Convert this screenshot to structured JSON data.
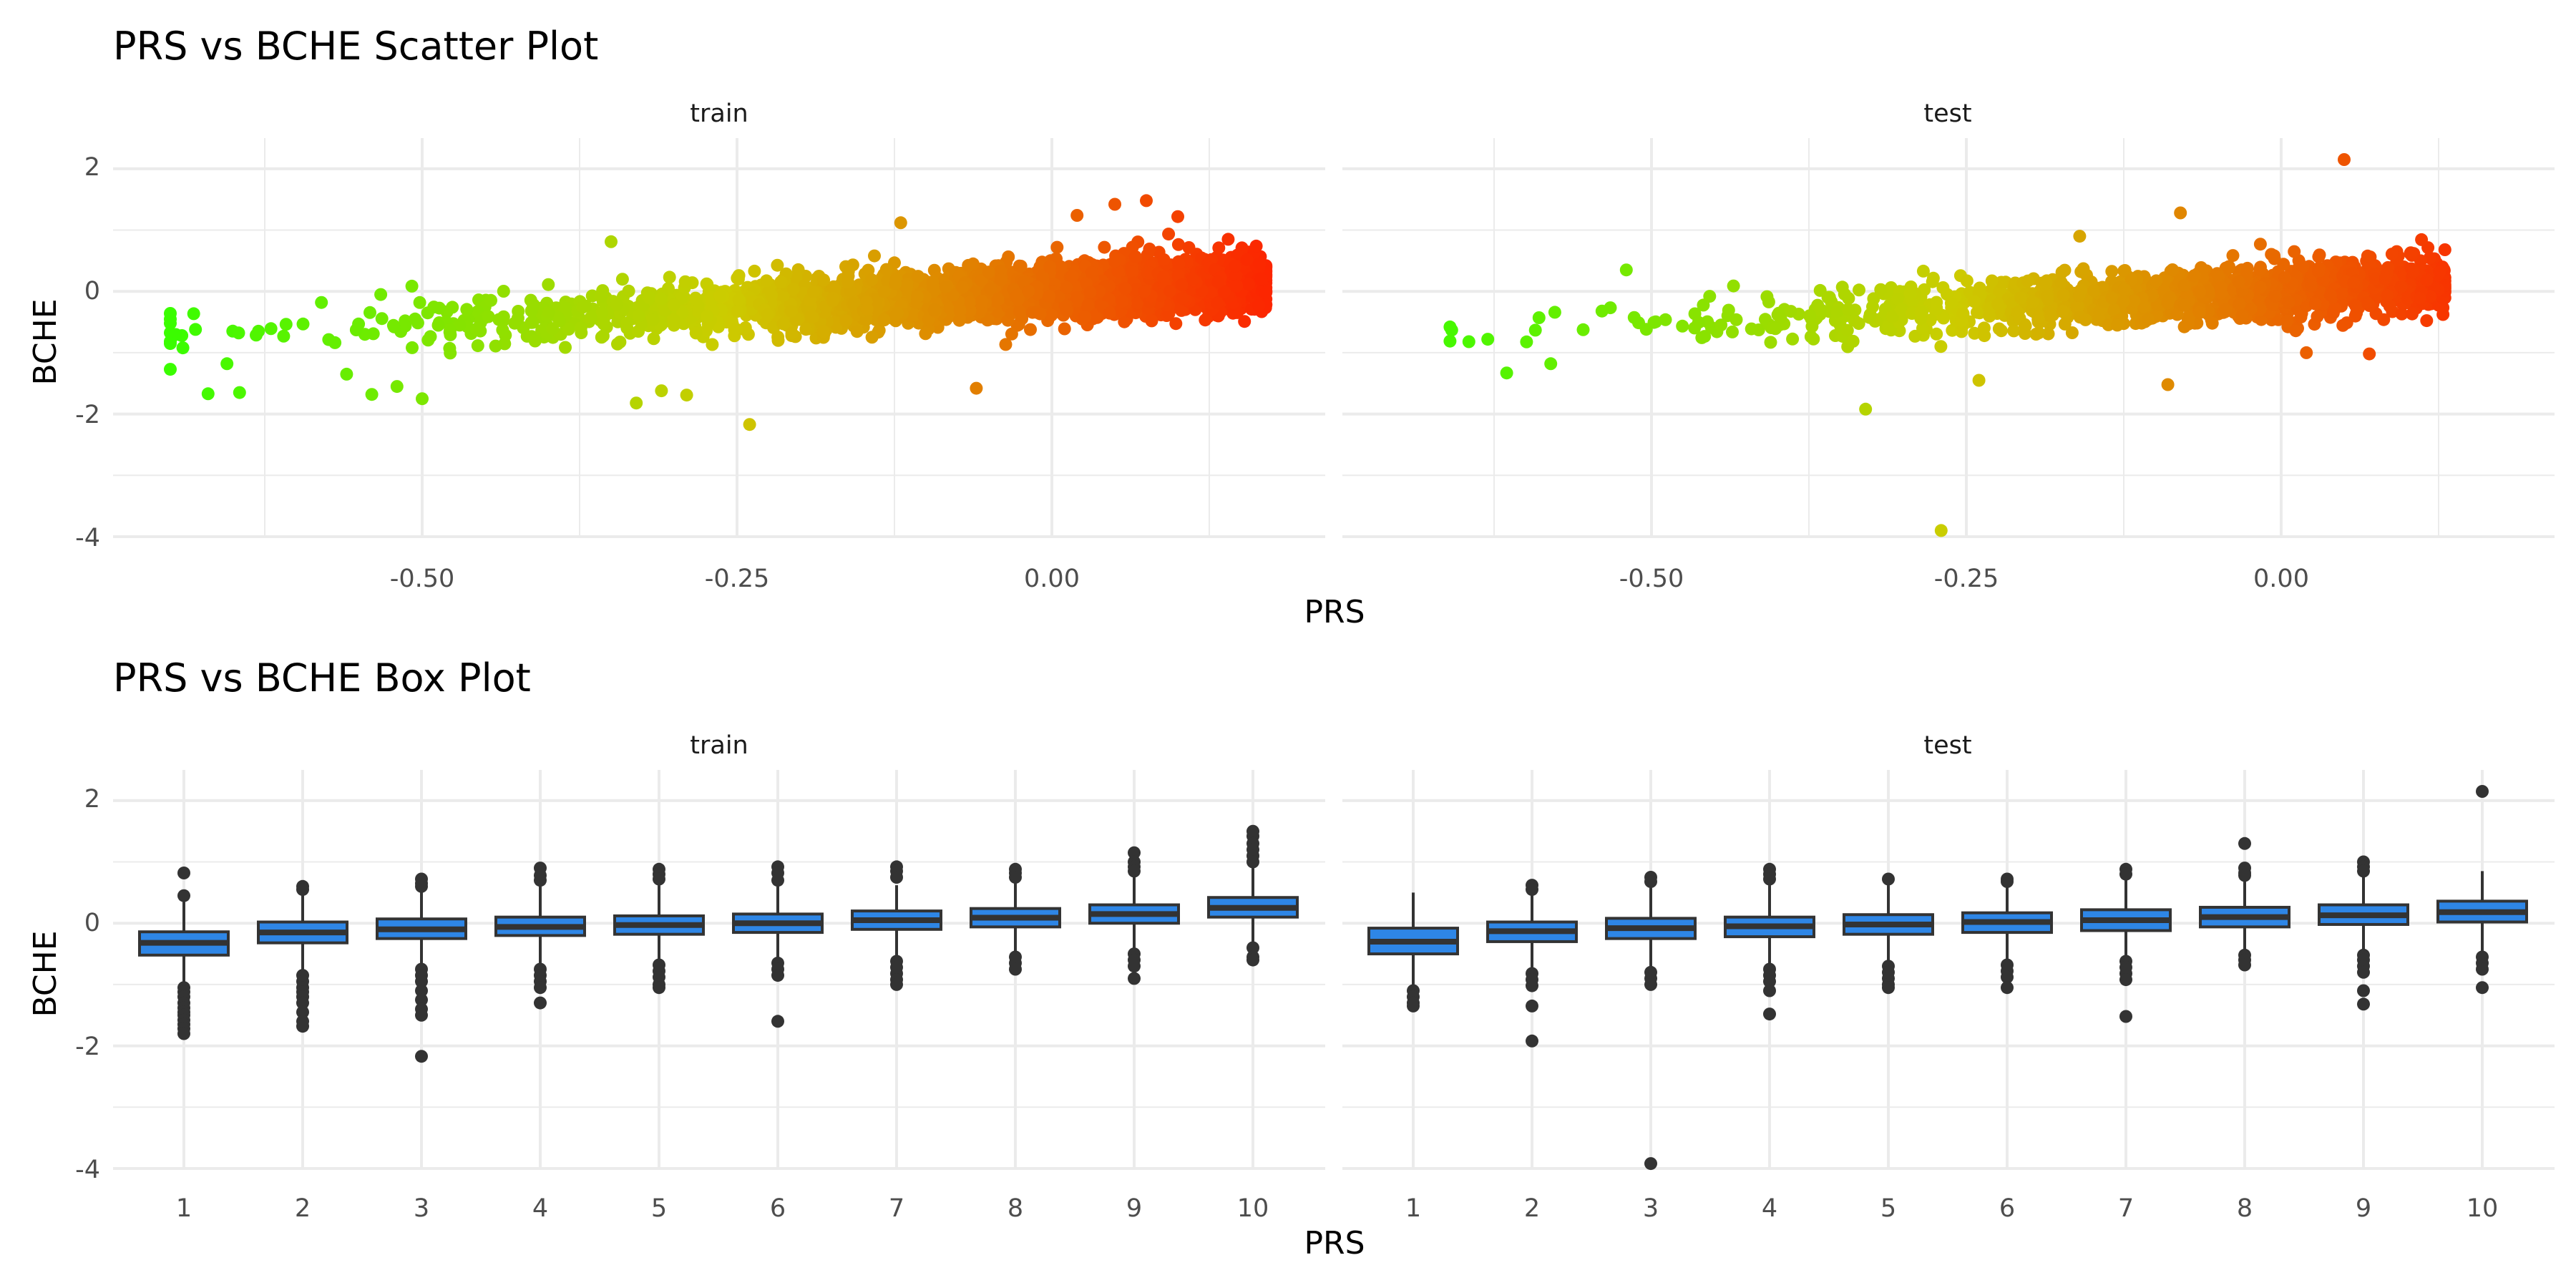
{
  "chart_data": [
    {
      "type": "scatter",
      "title": "PRS vs BCHE Scatter Plot",
      "xlabel": "PRS",
      "ylabel": "BCHE",
      "facets": [
        "train",
        "test"
      ],
      "xlim": [
        -0.72,
        0.2
      ],
      "ylim": [
        -4.0,
        2.5
      ],
      "x_ticks": [
        -0.5,
        -0.25,
        0.0
      ],
      "x_tick_labels": [
        "-0.50",
        "-0.25",
        "0.00"
      ],
      "y_ticks": [
        2,
        0,
        -2,
        -4
      ],
      "y_tick_labels": [
        "2",
        "0",
        "-2",
        "-4"
      ],
      "color_scale": {
        "low": "#33ff00",
        "mid": "#cccc00",
        "high": "#ff1a00",
        "note": "points colored by PRS"
      },
      "grid": true,
      "panels": [
        {
          "facet": "train",
          "trend": {
            "slope": 1.05,
            "intercept": 0.0,
            "spread": 0.22
          },
          "x_range": [
            -0.7,
            0.17
          ],
          "points": [
            [
              -0.7,
              -0.85
            ],
            [
              -0.69,
              -0.92
            ],
            [
              -0.68,
              -0.62
            ],
            [
              -0.67,
              -1.67
            ],
            [
              -0.655,
              -1.18
            ],
            [
              -0.645,
              -1.65
            ],
            [
              -0.63,
              -0.65
            ],
            [
              -0.61,
              -0.73
            ],
            [
              -0.58,
              -0.18
            ],
            [
              -0.56,
              -1.35
            ],
            [
              -0.52,
              -1.55
            ],
            [
              -0.5,
              -1.75
            ],
            [
              -0.54,
              -1.68
            ],
            [
              -0.35,
              0.81
            ],
            [
              -0.31,
              -1.62
            ],
            [
              -0.33,
              -1.82
            ],
            [
              -0.29,
              -1.69
            ],
            [
              -0.24,
              -2.17
            ],
            [
              -0.12,
              1.12
            ],
            [
              -0.06,
              -1.58
            ],
            [
              0.05,
              1.42
            ],
            [
              0.075,
              1.48
            ],
            [
              0.1,
              1.22
            ],
            [
              0.155,
              0.52
            ],
            [
              0.165,
              0.45
            ],
            [
              0.17,
              -0.02
            ],
            [
              0.14,
              0.85
            ],
            [
              0.02,
              1.24
            ]
          ]
        },
        {
          "facet": "test",
          "trend": {
            "slope": 1.05,
            "intercept": 0.0,
            "spread": 0.22
          },
          "x_range": [
            -0.66,
            0.13
          ],
          "points": [
            [
              -0.66,
              -0.58
            ],
            [
              -0.645,
              -0.82
            ],
            [
              -0.63,
              -0.78
            ],
            [
              -0.615,
              -1.33
            ],
            [
              -0.58,
              -1.18
            ],
            [
              -0.52,
              0.35
            ],
            [
              -0.33,
              -1.92
            ],
            [
              -0.27,
              -3.9
            ],
            [
              -0.24,
              -1.45
            ],
            [
              -0.09,
              -1.52
            ],
            [
              0.05,
              2.15
            ],
            [
              -0.08,
              1.28
            ],
            [
              0.07,
              -1.02
            ],
            [
              0.13,
              0.68
            ],
            [
              0.105,
              0.32
            ],
            [
              0.11,
              -0.11
            ],
            [
              -0.16,
              0.9
            ],
            [
              0.02,
              -1.0
            ]
          ]
        }
      ]
    },
    {
      "type": "box",
      "title": "PRS vs BCHE Box Plot",
      "xlabel": "PRS",
      "ylabel": "BCHE",
      "facets": [
        "train",
        "test"
      ],
      "categories": [
        "1",
        "2",
        "3",
        "4",
        "5",
        "6",
        "7",
        "8",
        "9",
        "10"
      ],
      "ylim": [
        -4.0,
        2.5
      ],
      "y_ticks": [
        2,
        0,
        -2,
        -4
      ],
      "y_tick_labels": [
        "2",
        "0",
        "-2",
        "-4"
      ],
      "box_fill": "#2e86e6",
      "box_line": "#333333",
      "grid": true,
      "panels": [
        {
          "facet": "train",
          "boxes": [
            {
              "q1": -0.52,
              "median": -0.32,
              "q3": -0.14,
              "lower": -1.0,
              "upper": 0.38,
              "outliers": [
                0.82,
                0.45,
                -1.05,
                -1.12,
                -1.2,
                -1.3,
                -1.38,
                -1.45,
                -1.5,
                -1.58,
                -1.65,
                -1.72,
                -1.8
              ]
            },
            {
              "q1": -0.32,
              "median": -0.15,
              "q3": 0.02,
              "lower": -0.8,
              "upper": 0.5,
              "outliers": [
                0.6,
                0.55,
                -0.85,
                -0.95,
                -1.05,
                -1.12,
                -1.2,
                -1.3,
                -1.45,
                -1.6,
                -1.68
              ]
            },
            {
              "q1": -0.25,
              "median": -0.1,
              "q3": 0.07,
              "lower": -0.7,
              "upper": 0.55,
              "outliers": [
                0.72,
                0.65,
                0.6,
                -0.75,
                -0.85,
                -0.95,
                -1.1,
                -1.25,
                -1.4,
                -1.5,
                -2.17
              ]
            },
            {
              "q1": -0.2,
              "median": -0.06,
              "q3": 0.1,
              "lower": -0.68,
              "upper": 0.62,
              "outliers": [
                0.9,
                0.78,
                0.7,
                -0.75,
                -0.85,
                -0.95,
                -1.05,
                -1.3
              ]
            },
            {
              "q1": -0.18,
              "median": -0.03,
              "q3": 0.12,
              "lower": -0.62,
              "upper": 0.62,
              "outliers": [
                0.88,
                0.8,
                0.72,
                -0.68,
                -0.78,
                -0.88,
                -1.0,
                -1.05
              ]
            },
            {
              "q1": -0.15,
              "median": 0.0,
              "q3": 0.15,
              "lower": -0.6,
              "upper": 0.6,
              "outliers": [
                0.92,
                0.82,
                0.7,
                -0.65,
                -0.75,
                -0.85,
                -1.6
              ]
            },
            {
              "q1": -0.1,
              "median": 0.05,
              "q3": 0.2,
              "lower": -0.55,
              "upper": 0.62,
              "outliers": [
                0.92,
                0.85,
                0.75,
                -0.62,
                -0.72,
                -0.82,
                -0.92,
                -1.0
              ]
            },
            {
              "q1": -0.06,
              "median": 0.09,
              "q3": 0.24,
              "lower": -0.5,
              "upper": 0.68,
              "outliers": [
                0.88,
                0.82,
                0.75,
                -0.55,
                -0.65,
                -0.75
              ]
            },
            {
              "q1": 0.0,
              "median": 0.15,
              "q3": 0.3,
              "lower": -0.45,
              "upper": 0.78,
              "outliers": [
                1.15,
                1.0,
                0.92,
                0.85,
                -0.5,
                -0.6,
                -0.7,
                -0.9
              ]
            },
            {
              "q1": 0.1,
              "median": 0.25,
              "q3": 0.42,
              "lower": -0.35,
              "upper": 0.9,
              "outliers": [
                1.5,
                1.42,
                1.3,
                1.2,
                1.1,
                1.0,
                -0.4,
                -0.55,
                -0.6
              ]
            }
          ]
        },
        {
          "facet": "test",
          "boxes": [
            {
              "q1": -0.5,
              "median": -0.3,
              "q3": -0.08,
              "lower": -1.05,
              "upper": 0.5,
              "outliers": [
                -1.1,
                -1.2,
                -1.3,
                -1.35
              ]
            },
            {
              "q1": -0.3,
              "median": -0.13,
              "q3": 0.02,
              "lower": -0.75,
              "upper": 0.5,
              "outliers": [
                0.62,
                0.55,
                -0.82,
                -0.92,
                -1.02,
                -1.35,
                -1.92
              ]
            },
            {
              "q1": -0.25,
              "median": -0.08,
              "q3": 0.08,
              "lower": -0.72,
              "upper": 0.58,
              "outliers": [
                0.75,
                0.68,
                -0.8,
                -0.9,
                -1.0,
                -3.92
              ]
            },
            {
              "q1": -0.22,
              "median": -0.05,
              "q3": 0.1,
              "lower": -0.68,
              "upper": 0.62,
              "outliers": [
                0.88,
                0.8,
                0.72,
                -0.75,
                -0.85,
                -0.95,
                -1.1,
                -1.48
              ]
            },
            {
              "q1": -0.18,
              "median": -0.02,
              "q3": 0.14,
              "lower": -0.62,
              "upper": 0.62,
              "outliers": [
                0.72,
                -0.7,
                -0.8,
                -0.9,
                -1.0,
                -1.05
              ]
            },
            {
              "q1": -0.15,
              "median": 0.02,
              "q3": 0.17,
              "lower": -0.6,
              "upper": 0.64,
              "outliers": [
                0.72,
                0.68,
                -0.68,
                -0.78,
                -0.88,
                -1.05
              ]
            },
            {
              "q1": -0.12,
              "median": 0.05,
              "q3": 0.22,
              "lower": -0.55,
              "upper": 0.72,
              "outliers": [
                0.88,
                0.8,
                -0.62,
                -0.72,
                -0.82,
                -0.92,
                -1.52
              ]
            },
            {
              "q1": -0.06,
              "median": 0.1,
              "q3": 0.26,
              "lower": -0.48,
              "upper": 0.72,
              "outliers": [
                1.3,
                0.9,
                0.82,
                0.78,
                -0.52,
                -0.6,
                -0.68
              ]
            },
            {
              "q1": -0.02,
              "median": 0.13,
              "q3": 0.3,
              "lower": -0.48,
              "upper": 0.78,
              "outliers": [
                1.0,
                0.92,
                0.85,
                -0.52,
                -0.6,
                -0.7,
                -0.8,
                -1.1,
                -1.32
              ]
            },
            {
              "q1": 0.02,
              "median": 0.18,
              "q3": 0.36,
              "lower": -0.45,
              "upper": 0.85,
              "outliers": [
                2.15,
                -0.55,
                -0.65,
                -0.75,
                -1.05
              ]
            }
          ]
        }
      ]
    }
  ]
}
